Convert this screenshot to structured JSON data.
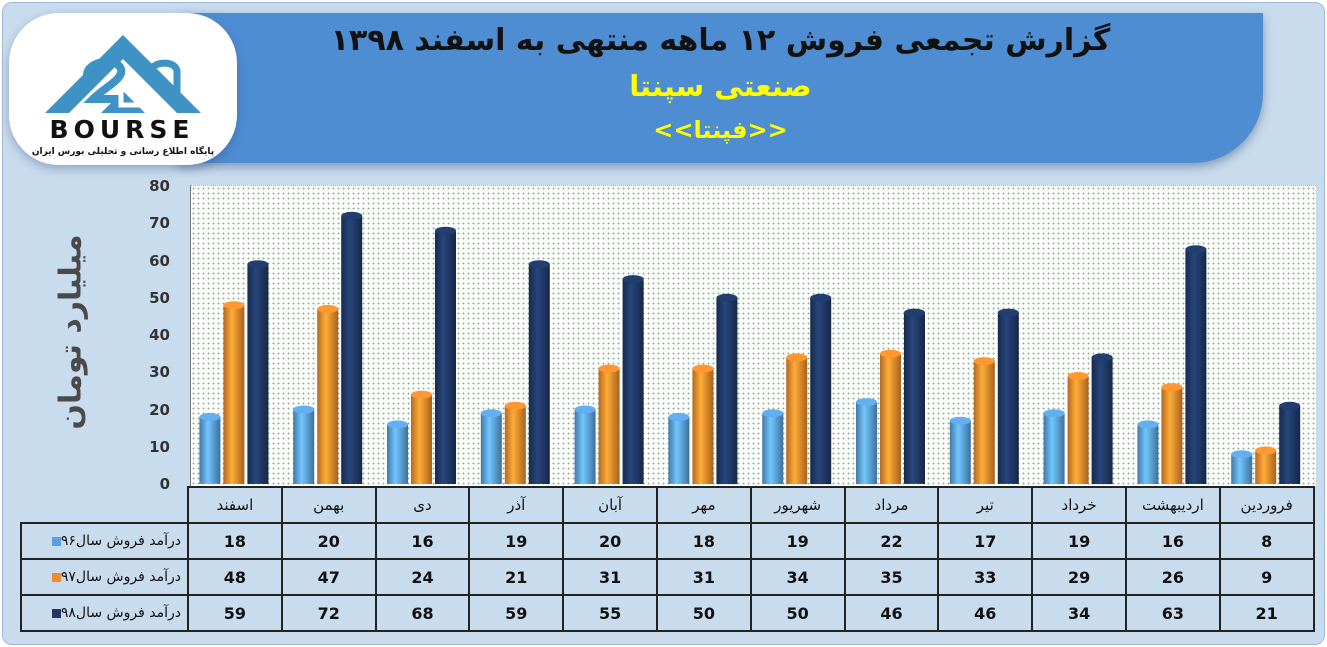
{
  "title": {
    "main": "گزارش تجمعی فروش ۱۲ ماهه منتهی به اسفند ۱۳۹۸",
    "company": "صنعتی سپنتا",
    "ticker": "<<فپنتا>>"
  },
  "logo": {
    "name": "BOURSE",
    "tagline": "پایگاه اطلاع رسانی و تحلیلی بورس ایران"
  },
  "colors": {
    "frame": "#c9dcee",
    "banner": "#4f8dd2",
    "series": [
      "#5a9fdc",
      "#f08a2c",
      "#1f3864"
    ]
  },
  "chart_data": {
    "type": "bar",
    "ylabel": "میلیارد تومان",
    "ylim": [
      0,
      80
    ],
    "yticks": [
      0,
      10,
      20,
      30,
      40,
      50,
      60,
      70,
      80
    ],
    "categories": [
      "فروردین",
      "اردیبهشت",
      "خرداد",
      "تیر",
      "مرداد",
      "شهریور",
      "مهر",
      "آبان",
      "آذر",
      "دی",
      "بهمن",
      "اسفند"
    ],
    "series": [
      {
        "name": "درآمد فروش سال۹۶",
        "color": "#5a9fdc",
        "values": [
          8,
          16,
          19,
          17,
          22,
          19,
          18,
          20,
          19,
          16,
          20,
          18
        ]
      },
      {
        "name": "درآمد فروش سال۹۷",
        "color": "#f08a2c",
        "values": [
          9,
          26,
          29,
          33,
          35,
          34,
          31,
          31,
          21,
          24,
          47,
          48
        ]
      },
      {
        "name": "درآمد فروش سال۹۸",
        "color": "#1f3864",
        "values": [
          21,
          63,
          34,
          46,
          46,
          50,
          50,
          55,
          59,
          68,
          72,
          59
        ]
      }
    ],
    "grid": false,
    "legend": "table-left"
  }
}
